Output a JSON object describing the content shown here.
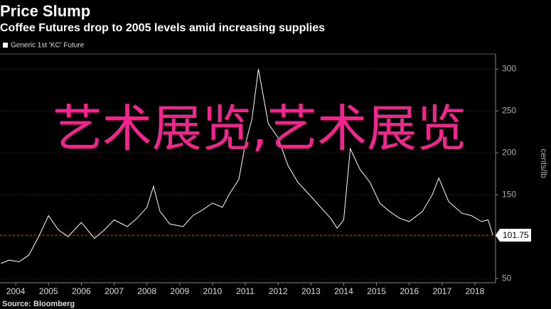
{
  "chart_data": {
    "type": "line",
    "title": "Price Slump",
    "subtitle": "Coffee Futures drop to 2005 levels amid increasing supplies",
    "y_label": "cents/lb",
    "source": "Source: Bloomberg",
    "overlay_text": "艺术展览,艺术展览",
    "series": [
      {
        "name": "Generic 1st 'KC' Future",
        "color": "#ffffff",
        "x": [
          2003.55,
          2003.8,
          2004.1,
          2004.4,
          2004.7,
          2005.0,
          2005.3,
          2005.6,
          2006.0,
          2006.4,
          2006.7,
          2007.0,
          2007.4,
          2007.7,
          2008.0,
          2008.2,
          2008.4,
          2008.7,
          2009.1,
          2009.4,
          2009.7,
          2010.0,
          2010.3,
          2010.5,
          2010.8,
          2011.0,
          2011.2,
          2011.4,
          2011.7,
          2012.0,
          2012.3,
          2012.6,
          2013.0,
          2013.3,
          2013.6,
          2013.8,
          2014.0,
          2014.2,
          2014.5,
          2014.8,
          2015.1,
          2015.4,
          2015.7,
          2016.0,
          2016.4,
          2016.7,
          2016.9,
          2017.2,
          2017.6,
          2017.9,
          2018.2,
          2018.4,
          2018.55
        ],
        "values": [
          68,
          72,
          70,
          78,
          100,
          125,
          108,
          100,
          117,
          98,
          108,
          120,
          112,
          122,
          135,
          160,
          130,
          115,
          112,
          125,
          132,
          140,
          135,
          150,
          168,
          210,
          240,
          300,
          235,
          218,
          185,
          165,
          148,
          135,
          122,
          110,
          120,
          205,
          180,
          165,
          140,
          130,
          122,
          118,
          130,
          150,
          170,
          142,
          128,
          125,
          118,
          120,
          101.75
        ]
      }
    ],
    "reference_line": {
      "value": 101.75,
      "label": "101.75",
      "color": "#e0303a"
    },
    "xlim": [
      2003.52,
      2018.63
    ],
    "xticks": [
      2004,
      2005,
      2006,
      2007,
      2008,
      2009,
      2010,
      2011,
      2012,
      2013,
      2014,
      2015,
      2016,
      2017,
      2018
    ],
    "ylim": [
      45,
      318
    ],
    "yticks": [
      50,
      100,
      150,
      200,
      250,
      300
    ],
    "grid": true
  }
}
